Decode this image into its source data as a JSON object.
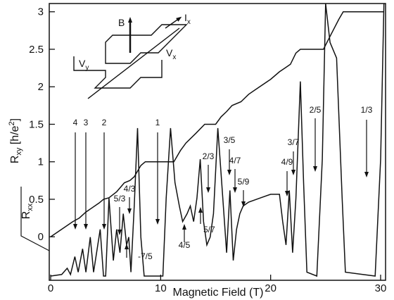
{
  "chart_data": {
    "type": "line",
    "xlabel": "Magnetic Field (T)",
    "ylabel_parts": [
      "R",
      "xy",
      " [h/e",
      "2",
      "]"
    ],
    "xlim": [
      -0.13,
      30.45
    ],
    "ylim": [
      -0.58,
      3.11
    ],
    "y2lim": [
      0,
      3.5
    ],
    "xticks": [
      0,
      10,
      20,
      30
    ],
    "yticks": [
      0,
      0.5,
      1,
      1.5,
      2,
      2.5,
      3
    ],
    "series": [
      {
        "color": "#111111",
        "x": [
          0,
          2,
          2.6,
          3.2,
          4.4,
          4.8,
          5.3,
          6,
          6.7,
          7.2,
          7.6,
          8.2,
          8.6,
          11.2,
          11.8,
          12.3,
          13.2,
          14,
          15,
          15.5,
          16,
          16.5,
          17.3,
          18,
          19,
          20,
          20.8,
          21.3,
          21.8,
          22.3,
          22.7,
          24.8,
          25.5,
          26.2,
          26.6,
          30.3
        ],
        "values": [
          0,
          0.2,
          0.25,
          0.33,
          0.45,
          0.5,
          0.52,
          0.6,
          0.72,
          0.75,
          0.8,
          0.95,
          1,
          1,
          1.15,
          1.25,
          1.38,
          1.5,
          1.5,
          1.6,
          1.67,
          1.75,
          1.8,
          1.9,
          2,
          2.1,
          2.2,
          2.25,
          2.3,
          2.45,
          2.5,
          2.5,
          2.7,
          2.9,
          3,
          3
        ]
      },
      {
        "color": "#111111",
        "axis": "y2",
        "label_parts": [
          "R",
          "xx"
        ],
        "x": [
          0,
          1,
          1.5,
          1.8,
          2.2,
          2.5,
          2.9,
          3.2,
          3.6,
          3.9,
          4.5,
          4.8,
          5,
          5.3,
          5.5,
          5.7,
          6,
          6.3,
          6.6,
          6.9,
          7.1,
          7.3,
          7.6,
          7.9,
          8.2,
          8.5,
          10.2,
          10.5,
          10.9,
          11.3,
          11.7,
          12,
          12.4,
          12.7,
          13,
          13.3,
          13.6,
          13.9,
          14.2,
          14.5,
          14.8,
          15.2,
          15.6,
          16,
          16.3,
          16.6,
          16.9,
          17.2,
          17.5,
          18,
          19,
          20,
          20.8,
          21.1,
          21.4,
          21.7,
          22,
          22.3,
          22.7,
          23,
          23.3,
          24.2,
          24.7,
          25,
          25.4,
          26,
          26.5,
          26.8,
          29.5,
          30,
          30.3
        ],
        "values": [
          0,
          0.02,
          0.1,
          0.02,
          0.25,
          0.05,
          0.35,
          0.05,
          0.5,
          0.05,
          0.6,
          0,
          0,
          1,
          0.6,
          0.2,
          0.6,
          0.3,
          0.8,
          0.4,
          0.5,
          0.05,
          0.9,
          1.9,
          0.5,
          0,
          0,
          1,
          1.9,
          1.2,
          0.9,
          0.7,
          0.8,
          0.9,
          0.7,
          1,
          1.5,
          0.7,
          0.4,
          0.5,
          0.8,
          1.9,
          1.1,
          0.3,
          1.1,
          0.2,
          0.6,
          0.8,
          0.9,
          0.95,
          1,
          1.05,
          1.05,
          0.7,
          0.4,
          1.1,
          0.3,
          1,
          2.5,
          1.2,
          0.05,
          0,
          1.5,
          3.5,
          3,
          2.8,
          1,
          0.05,
          0,
          1.5,
          3.5
        ]
      }
    ],
    "annotations": [
      "4",
      "3",
      "2",
      "1",
      "4/3",
      "5/3",
      "-7/5",
      "4/5",
      "5/7",
      "2/3",
      "3/5",
      "4/7",
      "5/9",
      "4/9",
      "3/7",
      "2/5",
      "1/3"
    ],
    "inset_labels": {
      "B": "B",
      "I": [
        "I",
        "x"
      ],
      "Vy": [
        "V",
        "y"
      ],
      "Vx": [
        "V",
        "x"
      ]
    }
  }
}
